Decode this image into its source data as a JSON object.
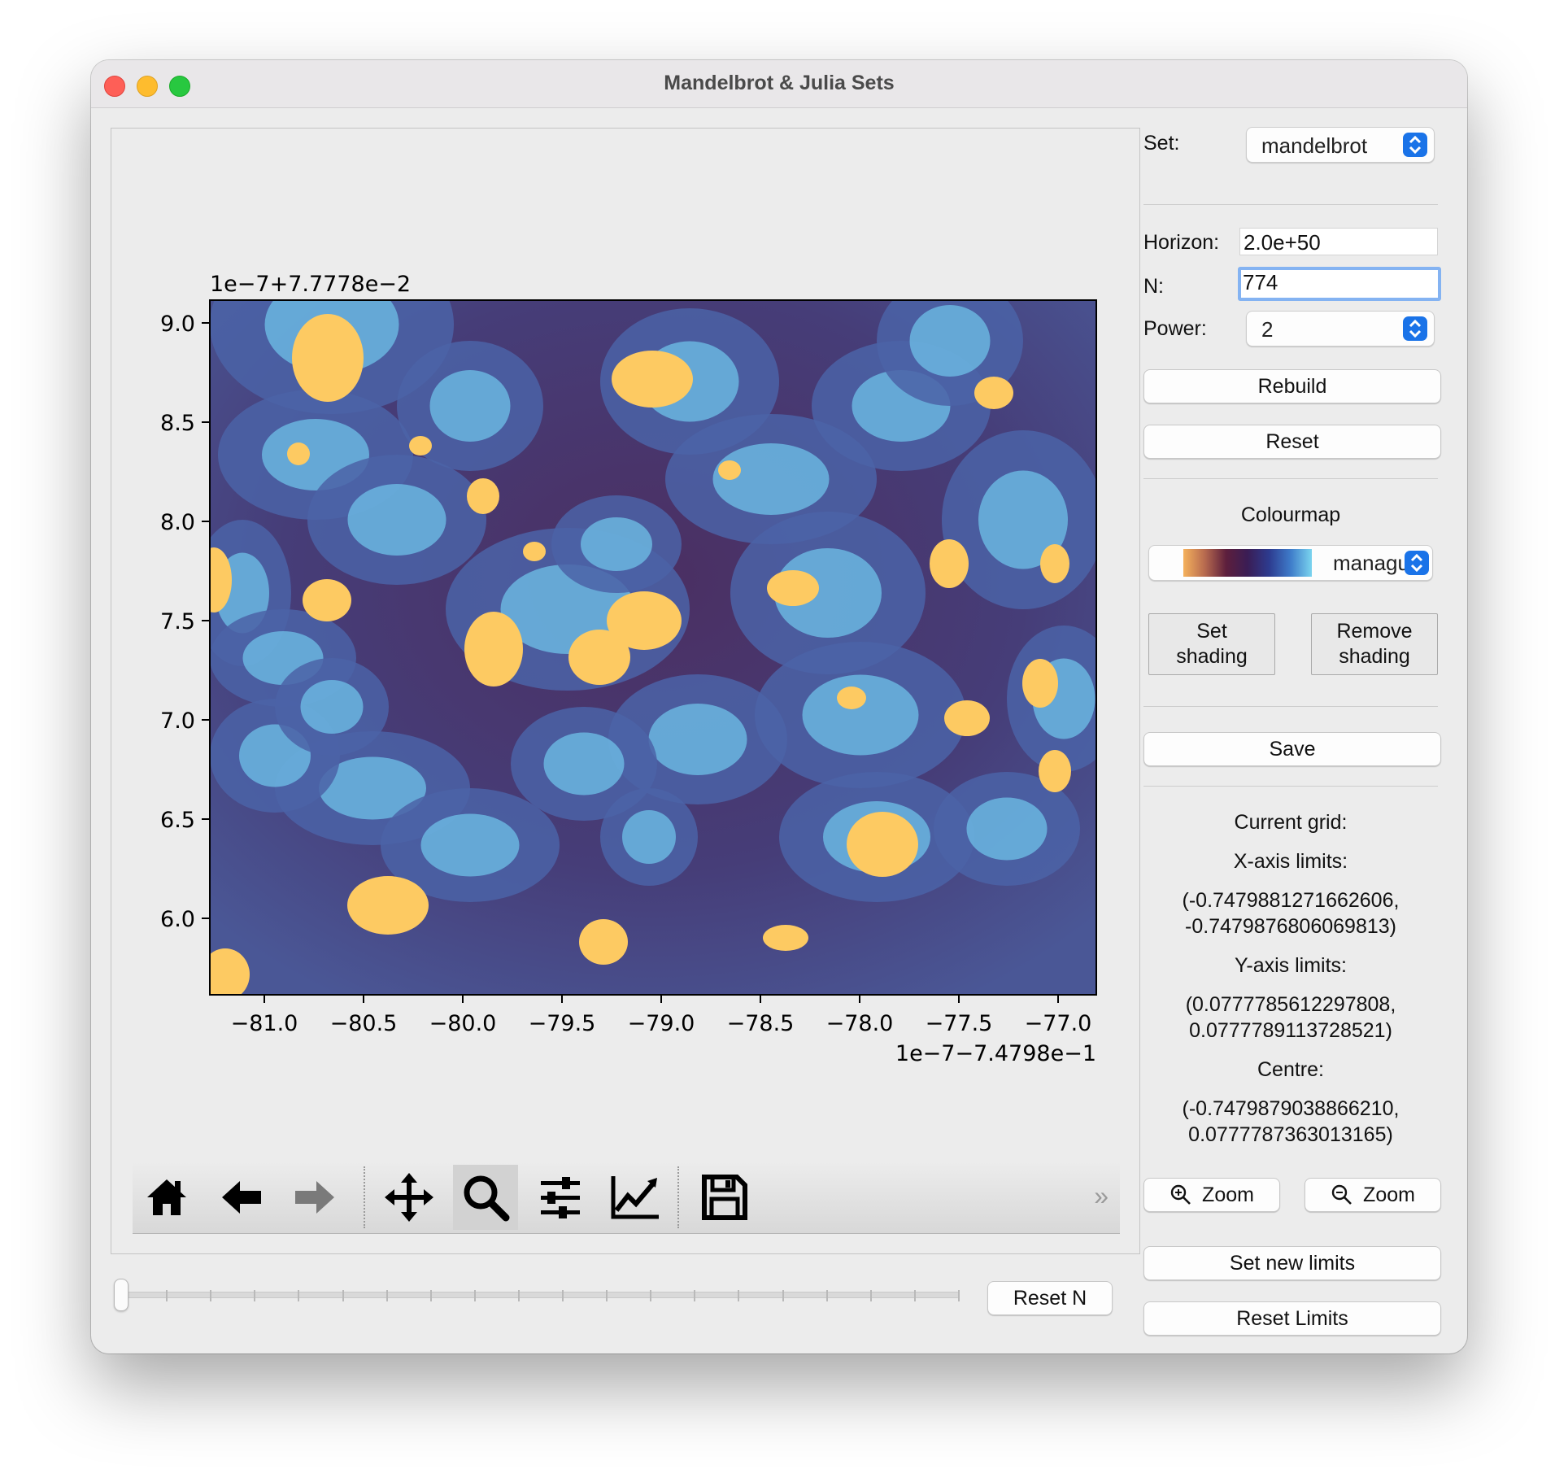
{
  "window": {
    "title": "Mandelbrot & Julia Sets"
  },
  "colors": {
    "background": "#4a3f77",
    "deep_purple": "#4b2f62",
    "fractal_blue": "#4b63a7",
    "fractal_cyan": "#6fc1e8",
    "fractal_yellow": "#fdca62",
    "accent_blue": "#1a73e8"
  },
  "plot": {
    "y_offset_label": "1e−7+7.7778e−2",
    "x_offset_label": "1e−7−7.4798e−1",
    "x_ticks": [
      "−81.0",
      "−80.5",
      "−80.0",
      "−79.5",
      "−79.0",
      "−78.5",
      "−78.0",
      "−77.5",
      "−77.0"
    ],
    "y_ticks": [
      "9.0",
      "8.5",
      "8.0",
      "7.5",
      "7.0",
      "6.5",
      "6.0"
    ]
  },
  "toolbar": {
    "icons": [
      "home-icon",
      "back-arrow-icon",
      "forward-arrow-icon",
      "pan-icon",
      "zoom-icon",
      "configure-subplots-icon",
      "edit-axis-icon",
      "save-figure-icon"
    ],
    "more": "»"
  },
  "controls": {
    "set_label": "Set:",
    "set_value": "mandelbrot",
    "horizon_label": "Horizon:",
    "horizon_value": "2.0e+50",
    "n_label": "N:",
    "n_value": "774",
    "power_label": "Power:",
    "power_value": "2",
    "rebuild": "Rebuild",
    "reset": "Reset",
    "colourmap_label": "Colourmap",
    "colourmap_value": "managua",
    "set_shading_1": "Set",
    "set_shading_2": "shading",
    "remove_shading_1": "Remove",
    "remove_shading_2": "shading",
    "save": "Save",
    "current_grid": "Current grid:",
    "x_limits_label": "X-axis limits:",
    "x_limits_1": "(-0.7479881271662606,",
    "x_limits_2": "-0.7479876806069813)",
    "y_limits_label": "Y-axis limits:",
    "y_limits_1": "(0.0777785612297808,",
    "y_limits_2": "0.0777789113728521)",
    "centre_label": "Centre:",
    "centre_1": "(-0.7479879038866210,",
    "centre_2": "0.0777787363013165)",
    "zoom_in": "Zoom",
    "zoom_out": "Zoom",
    "set_new_limits": "Set new limits",
    "reset_limits": "Reset Limits",
    "reset_n": "Reset N"
  },
  "slider": {
    "fraction": 0.0
  }
}
